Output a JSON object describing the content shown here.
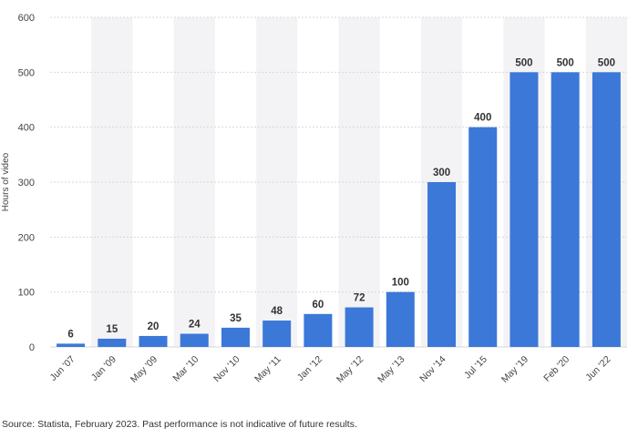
{
  "chart_data": {
    "type": "bar",
    "title": "",
    "xlabel": "",
    "ylabel": "Hours of video",
    "categories": [
      "Jun '07",
      "Jan '09",
      "May '09",
      "Mar '10",
      "Nov '10",
      "May '11",
      "Jan '12",
      "May '12",
      "May '13",
      "Nov '14",
      "Jul '15",
      "May '19",
      "Feb '20",
      "Jun '22"
    ],
    "values": [
      6,
      15,
      20,
      24,
      35,
      48,
      60,
      72,
      100,
      300,
      400,
      500,
      500,
      500
    ],
    "value_labels": [
      "6",
      "15",
      "20",
      "24",
      "35",
      "48",
      "60",
      "72",
      "100",
      "300",
      "400",
      "500",
      "500",
      "500"
    ],
    "yticks": [
      0,
      100,
      200,
      300,
      400,
      500,
      600
    ],
    "ytick_labels": [
      "0",
      "100",
      "200",
      "300",
      "400",
      "500",
      "600"
    ],
    "ylim": [
      0,
      600
    ],
    "grid": true,
    "legend": "none",
    "bar_color": "#3b78d8",
    "band_color": "#f3f3f6",
    "grid_color": "#d7d7d7",
    "text_color": "#444444"
  },
  "footer": {
    "source": "Source: Statista, February 2023. Past performance is not indicative of future results."
  }
}
